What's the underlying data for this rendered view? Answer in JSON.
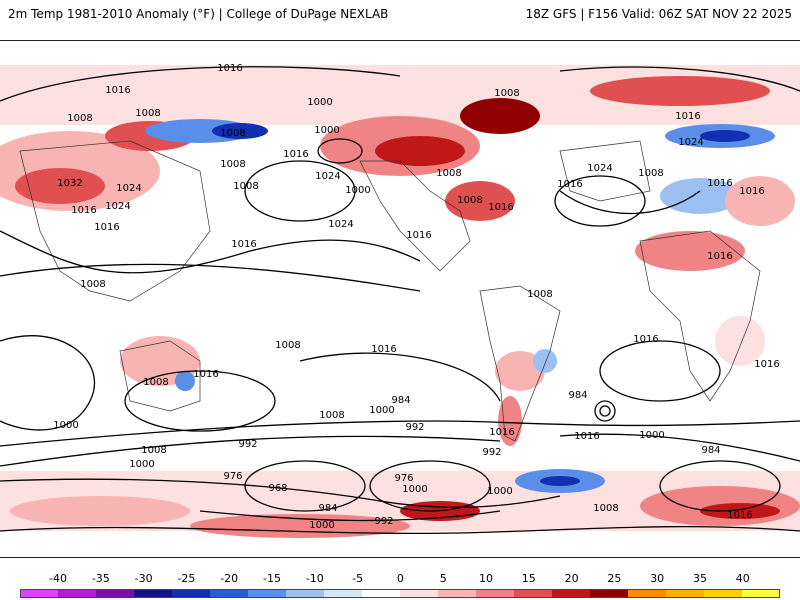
{
  "header": {
    "title_left": "2m Temp 1981-2010 Anomaly (°F) | College of DuPage NEXLAB",
    "title_right": "18Z GFS | F156 Valid: 06Z SAT NOV 22 2025"
  },
  "map": {
    "isobar_labels": [
      "1016",
      "1016",
      "1008",
      "1000",
      "1008",
      "1008",
      "1000",
      "1016",
      "1032",
      "1016",
      "1024",
      "1024",
      "1016",
      "1008",
      "1008",
      "1008",
      "1024",
      "1000",
      "1024",
      "1008",
      "1008",
      "1016",
      "1008",
      "1016",
      "1024",
      "1016",
      "1008",
      "1008",
      "1016",
      "1016",
      "1024",
      "1016",
      "1016",
      "1016",
      "1016",
      "1008",
      "1008",
      "1000",
      "1016",
      "1016",
      "1016",
      "1000",
      "1008",
      "984",
      "992",
      "1016",
      "992",
      "992",
      "1008",
      "1000",
      "984",
      "1000",
      "984",
      "976",
      "968",
      "976",
      "1000",
      "1000",
      "984",
      "992",
      "1000",
      "1008",
      "1016",
      "1016"
    ]
  },
  "colorbar": {
    "labels": [
      "-40",
      "-35",
      "-30",
      "-25",
      "-20",
      "-15",
      "-10",
      "-5",
      "0",
      "5",
      "10",
      "15",
      "20",
      "25",
      "30",
      "35",
      "40"
    ],
    "colors": [
      "#e040ff",
      "#b020d0",
      "#7a10a0",
      "#141480",
      "#1030b0",
      "#2a5cd8",
      "#5b8ee8",
      "#9cc0f2",
      "#d6e6fa",
      "#ffffff",
      "#fde0e0",
      "#f8b3b3",
      "#f08484",
      "#e05050",
      "#c01818",
      "#900000",
      "#ff8c00",
      "#ffb000",
      "#ffd000",
      "#ffff40"
    ]
  }
}
